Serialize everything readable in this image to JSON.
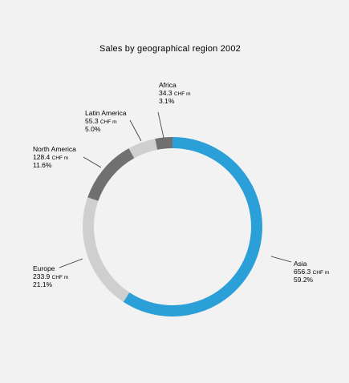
{
  "chart_data": {
    "type": "pie",
    "title": "Sales by geographical region 2002",
    "unit": "CHF m",
    "slices": [
      {
        "name": "Asia",
        "value": 656.3,
        "value_label": "656.3",
        "percent": 59.2,
        "percent_label": "59.2%",
        "color": "#2a9fd8"
      },
      {
        "name": "Europe",
        "value": 233.9,
        "value_label": "233.9",
        "percent": 21.1,
        "percent_label": "21.1%",
        "color": "#cfcfcf"
      },
      {
        "name": "North America",
        "value": 128.4,
        "value_label": "128.4",
        "percent": 11.6,
        "percent_label": "11.6%",
        "color": "#707070"
      },
      {
        "name": "Latin America",
        "value": 55.3,
        "value_label": "55.3",
        "percent": 5.0,
        "percent_label": "5.0%",
        "color": "#cfcfcf"
      },
      {
        "name": "Africa",
        "value": 34.3,
        "value_label": "34.3",
        "percent": 3.1,
        "percent_label": "3.1%",
        "color": "#707070"
      }
    ]
  }
}
